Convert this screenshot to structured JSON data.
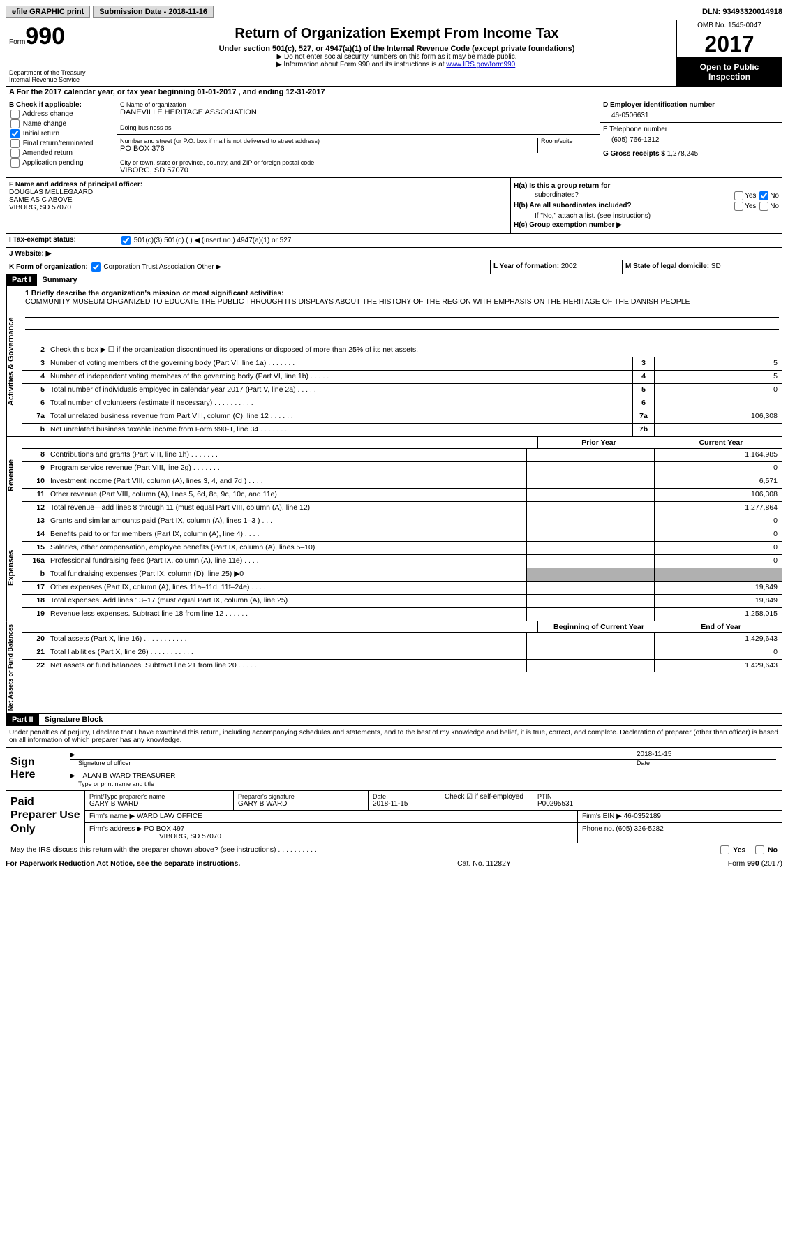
{
  "topbar": {
    "efile": "efile GRAPHIC print",
    "submission_label": "Submission Date - ",
    "submission_date": "2018-11-16",
    "dln_label": "DLN: ",
    "dln": "93493320014918"
  },
  "header": {
    "form_label": "Form",
    "form_num": "990",
    "dept1": "Department of the Treasury",
    "dept2": "Internal Revenue Service",
    "title": "Return of Organization Exempt From Income Tax",
    "subtitle": "Under section 501(c), 527, or 4947(a)(1) of the Internal Revenue Code (except private foundations)",
    "note1": "▶ Do not enter social security numbers on this form as it may be made public.",
    "note2_pre": "▶ Information about Form 990 and its instructions is at ",
    "note2_link": "www.IRS.gov/form990",
    "omb": "OMB No. 1545-0047",
    "year": "2017",
    "open1": "Open to Public",
    "open2": "Inspection"
  },
  "row_a": "A  For the 2017 calendar year, or tax year beginning 01-01-2017    , and ending 12-31-2017",
  "section_b": {
    "check_label": "B Check if applicable:",
    "opts": [
      "Address change",
      "Name change",
      "Initial return",
      "Final return/terminated",
      "Amended return",
      "Application pending"
    ],
    "c_name_lbl": "C Name of organization",
    "c_name": "DANEVILLE HERITAGE ASSOCIATION",
    "dba_lbl": "Doing business as",
    "dba": "",
    "addr_lbl": "Number and street (or P.O. box if mail is not delivered to street address)",
    "room_lbl": "Room/suite",
    "addr": "PO BOX 376",
    "city_lbl": "City or town, state or province, country, and ZIP or foreign postal code",
    "city": "VIBORG, SD  57070",
    "d_ein_lbl": "D Employer identification number",
    "d_ein": "46-0506631",
    "e_tel_lbl": "E Telephone number",
    "e_tel": "(605) 766-1312",
    "g_gross_lbl": "G Gross receipts $ ",
    "g_gross": "1,278,245"
  },
  "section_f": {
    "f_lbl": "F  Name and address of principal officer:",
    "f_name": "DOUGLAS MELLEGAARD",
    "f_addr1": "SAME AS C ABOVE",
    "f_addr2": "VIBORG, SD  57070",
    "ha_lbl": "H(a)  Is this a group return for",
    "ha_sub": "subordinates?",
    "hb_lbl": "H(b)  Are all subordinates included?",
    "hb_note": "If \"No,\" attach a list. (see instructions)",
    "hc_lbl": "H(c)  Group exemption number ▶",
    "yes": "Yes",
    "no": "No"
  },
  "row_i": {
    "lbl": "I  Tax-exempt status:",
    "opts": "501(c)(3)        501(c) (  ) ◀ (insert no.)        4947(a)(1) or        527"
  },
  "row_j": "J  Website: ▶",
  "row_k": {
    "k1_lbl": "K Form of organization:",
    "k1_opts": " Corporation     Trust     Association     Other ▶",
    "k2_lbl": "L Year of formation: ",
    "k2_val": "2002",
    "k3_lbl": "M State of legal domicile: ",
    "k3_val": "SD"
  },
  "part1": {
    "header": "Part I",
    "title": "Summary",
    "side_ag": "Activities & Governance",
    "side_rev": "Revenue",
    "side_exp": "Expenses",
    "side_net": "Net Assets or Fund Balances",
    "briefly_lbl": "1  Briefly describe the organization's mission or most significant activities:",
    "mission": "COMMUNITY MUSEUM ORGANIZED TO EDUCATE THE PUBLIC THROUGH ITS DISPLAYS ABOUT THE HISTORY OF THE REGION WITH EMPHASIS ON THE HERITAGE OF THE DANISH PEOPLE",
    "line2": "Check this box ▶ ☐  if the organization discontinued its operations or disposed of more than 25% of its net assets.",
    "lines_ag": [
      {
        "n": "3",
        "d": "Number of voting members of the governing body (Part VI, line 1a)   .   .   .   .   .   .   .",
        "b": "3",
        "v": "5"
      },
      {
        "n": "4",
        "d": "Number of independent voting members of the governing body (Part VI, line 1b)  .   .   .   .   .",
        "b": "4",
        "v": "5"
      },
      {
        "n": "5",
        "d": "Total number of individuals employed in calendar year 2017 (Part V, line 2a)  .   .   .   .   .",
        "b": "5",
        "v": "0"
      },
      {
        "n": "6",
        "d": "Total number of volunteers (estimate if necessary)  .   .   .   .   .   .   .   .   .   .",
        "b": "6",
        "v": ""
      },
      {
        "n": "7a",
        "d": "Total unrelated business revenue from Part VIII, column (C), line 12   .   .   .   .   .   .",
        "b": "7a",
        "v": "106,308"
      },
      {
        "n": "b",
        "d": "Net unrelated business taxable income from Form 990-T, line 34  .   .   .   .   .   .   .",
        "b": "7b",
        "v": ""
      }
    ],
    "hdr_prior": "Prior Year",
    "hdr_curr": "Current Year",
    "lines_rev": [
      {
        "n": "8",
        "d": "Contributions and grants (Part VIII, line 1h)   .   .   .   .   .   .   .",
        "p": "",
        "c": "1,164,985"
      },
      {
        "n": "9",
        "d": "Program service revenue (Part VIII, line 2g)   .   .   .   .   .   .   .",
        "p": "",
        "c": "0"
      },
      {
        "n": "10",
        "d": "Investment income (Part VIII, column (A), lines 3, 4, and 7d )   .   .   .   .",
        "p": "",
        "c": "6,571"
      },
      {
        "n": "11",
        "d": "Other revenue (Part VIII, column (A), lines 5, 6d, 8c, 9c, 10c, and 11e)",
        "p": "",
        "c": "106,308"
      },
      {
        "n": "12",
        "d": "Total revenue—add lines 8 through 11 (must equal Part VIII, column (A), line 12)",
        "p": "",
        "c": "1,277,864"
      }
    ],
    "lines_exp": [
      {
        "n": "13",
        "d": "Grants and similar amounts paid (Part IX, column (A), lines 1–3 )   .   .   .",
        "p": "",
        "c": "0"
      },
      {
        "n": "14",
        "d": "Benefits paid to or for members (Part IX, column (A), line 4)  .   .   .   .",
        "p": "",
        "c": "0"
      },
      {
        "n": "15",
        "d": "Salaries, other compensation, employee benefits (Part IX, column (A), lines 5–10)",
        "p": "",
        "c": "0"
      },
      {
        "n": "16a",
        "d": "Professional fundraising fees (Part IX, column (A), line 11e)   .   .   .   .",
        "p": "",
        "c": "0"
      },
      {
        "n": "b",
        "d": "Total fundraising expenses (Part IX, column (D), line 25) ▶0",
        "p": "shaded",
        "c": "shaded"
      },
      {
        "n": "17",
        "d": "Other expenses (Part IX, column (A), lines 11a–11d, 11f–24e)    .   .   .   .",
        "p": "",
        "c": "19,849"
      },
      {
        "n": "18",
        "d": "Total expenses. Add lines 13–17 (must equal Part IX, column (A), line 25)",
        "p": "",
        "c": "19,849"
      },
      {
        "n": "19",
        "d": "Revenue less expenses. Subtract line 18 from line 12  .   .   .   .   .   .",
        "p": "",
        "c": "1,258,015"
      }
    ],
    "hdr_begin": "Beginning of Current Year",
    "hdr_end": "End of Year",
    "lines_net": [
      {
        "n": "20",
        "d": "Total assets (Part X, line 16)   .   .   .   .   .   .   .   .   .   .   .",
        "p": "",
        "c": "1,429,643"
      },
      {
        "n": "21",
        "d": "Total liabilities (Part X, line 26)  .   .   .   .   .   .   .   .   .   .   .",
        "p": "",
        "c": "0"
      },
      {
        "n": "22",
        "d": "Net assets or fund balances. Subtract line 21 from line 20    .   .   .   .   .",
        "p": "",
        "c": "1,429,643"
      }
    ]
  },
  "part2": {
    "header": "Part II",
    "title": "Signature Block",
    "penalty": "Under penalties of perjury, I declare that I have examined this return, including accompanying schedules and statements, and to the best of my knowledge and belief, it is true, correct, and complete. Declaration of preparer (other than officer) is based on all information of which preparer has any knowledge.",
    "sign_here": "Sign Here",
    "sig_officer": "Signature of officer",
    "date_lbl": "Date",
    "sig_date": "2018-11-15",
    "officer_name": "ALAN B WARD TREASURER",
    "type_name": "Type or print name and title",
    "paid_lbl": "Paid Preparer Use Only",
    "prep_name_lbl": "Print/Type preparer's name",
    "prep_name": "GARY B WARD",
    "prep_sig_lbl": "Preparer's signature",
    "prep_sig": "GARY B WARD",
    "prep_date_lbl": "Date",
    "prep_date": "2018-11-15",
    "check_self": "Check ☑ if self-employed",
    "ptin_lbl": "PTIN",
    "ptin": "P00295531",
    "firm_name_lbl": "Firm's name     ▶ ",
    "firm_name": "WARD LAW OFFICE",
    "firm_ein_lbl": "Firm's EIN ▶ ",
    "firm_ein": "46-0352189",
    "firm_addr_lbl": "Firm's address ▶ ",
    "firm_addr": "PO BOX 497",
    "firm_city": "VIBORG, SD  57070",
    "phone_lbl": "Phone no. ",
    "phone": "(605) 326-5282",
    "discuss": "May the IRS discuss this return with the preparer shown above? (see instructions)   .   .   .   .   .   .   .   .   .   .",
    "yes": "Yes",
    "no": "No"
  },
  "footer": {
    "left": "For Paperwork Reduction Act Notice, see the separate instructions.",
    "mid": "Cat. No. 11282Y",
    "right": "Form 990 (2017)"
  }
}
